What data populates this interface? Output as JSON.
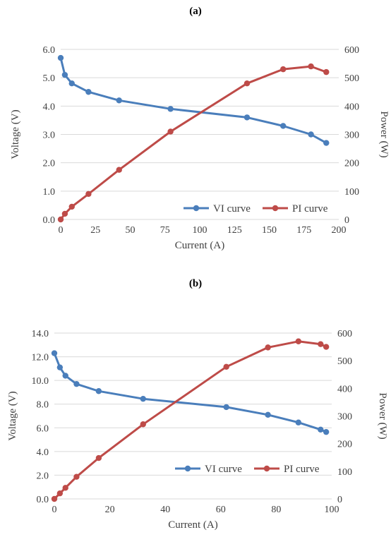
{
  "panels": {
    "a": {
      "label": "(a)"
    },
    "b": {
      "label": "(b)"
    }
  },
  "chart_data": [
    {
      "type": "line",
      "panel": "(a)",
      "xlabel": "Current (A)",
      "ylabel": "Voltage (V)",
      "y2label": "Power (W)",
      "xlim": [
        0,
        200
      ],
      "ylim": [
        0,
        6
      ],
      "y2lim": [
        0,
        600
      ],
      "xticks": [
        "0",
        "25",
        "50",
        "75",
        "100",
        "125",
        "150",
        "175",
        "200"
      ],
      "yticks": [
        "0.0",
        "1.0",
        "2.0",
        "3.0",
        "4.0",
        "5.0",
        "6.0"
      ],
      "y2ticks": [
        "0",
        "100",
        "200",
        "300",
        "400",
        "500",
        "600"
      ],
      "grid": "horizontal",
      "legend": "bottom-right",
      "series": [
        {
          "name": "VI curve",
          "axis": "left",
          "color": "#4a7ebb",
          "x": [
            0,
            3,
            8,
            20,
            42,
            79,
            134,
            160,
            180,
            191
          ],
          "y": [
            5.7,
            5.1,
            4.8,
            4.5,
            4.2,
            3.9,
            3.6,
            3.3,
            3.0,
            2.7
          ]
        },
        {
          "name": "PI curve",
          "axis": "right",
          "color": "#be4b48",
          "x": [
            0,
            3,
            8,
            20,
            42,
            79,
            134,
            160,
            180,
            191
          ],
          "y": [
            0,
            20,
            45,
            90,
            175,
            310,
            480,
            530,
            540,
            520
          ]
        }
      ]
    },
    {
      "type": "line",
      "panel": "(b)",
      "xlabel": "Current (A)",
      "ylabel": "Voltage (V)",
      "y2label": "Power (W)",
      "xlim": [
        0,
        100
      ],
      "ylim": [
        0,
        14
      ],
      "y2lim": [
        0,
        600
      ],
      "xticks": [
        "0",
        "20",
        "40",
        "60",
        "80",
        "100"
      ],
      "yticks": [
        "0.0",
        "2.0",
        "4.0",
        "6.0",
        "8.0",
        "10.0",
        "12.0",
        "14.0"
      ],
      "y2ticks": [
        "0",
        "100",
        "200",
        "300",
        "400",
        "500",
        "600"
      ],
      "grid": "horizontal",
      "legend": "bottom-right",
      "series": [
        {
          "name": "VI curve",
          "axis": "left",
          "color": "#4a7ebb",
          "x": [
            0,
            2,
            4,
            8,
            16,
            32,
            62,
            77,
            88,
            96,
            98
          ],
          "y": [
            12.3,
            11.1,
            10.4,
            9.7,
            9.1,
            8.45,
            7.75,
            7.1,
            6.45,
            5.85,
            5.65
          ]
        },
        {
          "name": "PI curve",
          "axis": "right",
          "color": "#be4b48",
          "x": [
            0,
            2,
            4,
            8,
            16,
            32,
            62,
            77,
            88,
            96,
            98
          ],
          "y": [
            0,
            20,
            40,
            80,
            148,
            270,
            478,
            548,
            570,
            560,
            550
          ]
        }
      ]
    }
  ]
}
